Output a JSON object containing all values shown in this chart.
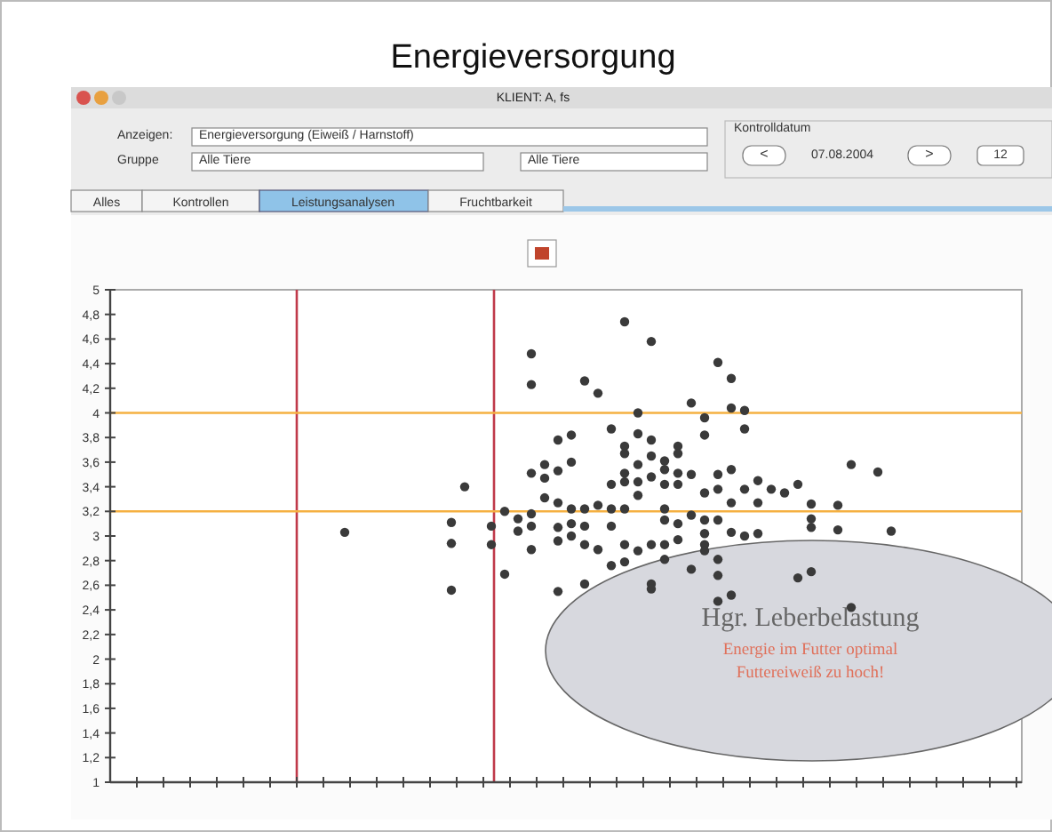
{
  "chart_data": {
    "type": "scatter",
    "title": "Energieversorgung",
    "annotations": [
      "KLIENT: A, fs",
      "Anzeigen:",
      "Energieversorgung (Eiweiß / Harnstoff)",
      "Gruppe",
      "Alle Tiere",
      "Alle Tiere",
      "Kontrolldatum",
      "<",
      "07.08.2004",
      ">",
      "12",
      "Alles",
      "Kontrollen",
      "Leistungsanalysen",
      "Fruchtbarkeit",
      "Hgr. Leberbelastung",
      "Energie im Futter optimal",
      "Futtereiweiß zu hoch!"
    ],
    "categories": [
      null,
      null,
      null,
      null,
      null,
      null,
      null,
      null,
      null,
      null,
      null,
      null,
      null,
      null,
      null,
      null,
      null,
      null,
      null,
      null,
      null,
      null,
      null,
      null,
      null,
      null,
      null,
      null,
      null,
      null,
      null,
      null,
      null,
      null,
      null,
      null,
      null,
      null,
      null,
      null,
      null,
      null,
      null,
      null,
      null,
      null,
      null,
      null,
      null,
      null,
      null,
      null,
      null,
      null,
      null,
      null,
      null,
      null,
      null,
      null,
      null,
      null,
      null,
      null,
      null,
      null,
      null,
      null
    ],
    "series": [
      {
        "color": "#3a3a3a",
        "values": [
          null,
          null,
          null,
          null,
          null,
          null,
          null,
          null,
          null,
          null,
          null,
          null,
          null,
          null,
          null,
          null,
          null,
          3.03,
          null,
          null,
          null,
          null,
          null,
          null,
          null,
          3.11,
          3.4,
          null,
          3.08,
          3.2,
          3.14,
          4.48,
          3.58,
          3.78,
          3.82,
          4.26,
          4.16,
          3.87,
          4.74,
          4.0,
          4.58,
          3.61,
          3.73,
          4.08,
          3.96,
          4.41,
          4.28,
          4.02,
          3.45,
          3.38,
          3.35,
          3.42,
          3.26,
          null,
          3.25,
          3.58,
          null,
          3.52,
          3.04,
          null,
          null,
          null,
          null,
          null,
          null,
          null,
          null,
          null
        ]
      },
      {
        "color": "#3a3a3a",
        "values": [
          null,
          null,
          null,
          null,
          null,
          null,
          null,
          null,
          null,
          null,
          null,
          null,
          null,
          null,
          null,
          null,
          null,
          null,
          null,
          null,
          null,
          null,
          null,
          null,
          null,
          2.94,
          null,
          null,
          2.93,
          2.69,
          3.04,
          4.23,
          3.47,
          3.53,
          3.6,
          3.22,
          3.25,
          3.42,
          3.73,
          3.83,
          3.78,
          3.54,
          3.67,
          3.5,
          3.82,
          3.5,
          4.04,
          3.87,
          3.27,
          null,
          null,
          2.66,
          3.14,
          null,
          3.05,
          2.42,
          null,
          null,
          null,
          null,
          null,
          null,
          null,
          null,
          null,
          null,
          null,
          null
        ]
      },
      {
        "color": "#3a3a3a",
        "values": [
          null,
          null,
          null,
          null,
          null,
          null,
          null,
          null,
          null,
          null,
          null,
          null,
          null,
          null,
          null,
          null,
          null,
          null,
          null,
          null,
          null,
          null,
          null,
          null,
          null,
          2.56,
          null,
          null,
          null,
          null,
          null,
          3.51,
          3.31,
          3.27,
          3.22,
          3.08,
          2.89,
          3.22,
          3.67,
          3.58,
          3.65,
          3.42,
          3.51,
          3.17,
          3.35,
          3.38,
          3.54,
          3.38,
          3.02,
          null,
          null,
          null,
          3.07,
          null,
          null,
          null,
          null,
          null,
          null,
          null,
          null,
          null,
          null,
          null,
          null,
          null,
          null,
          null
        ]
      },
      {
        "color": "#3a3a3a",
        "values": [
          null,
          null,
          null,
          null,
          null,
          null,
          null,
          null,
          null,
          null,
          null,
          null,
          null,
          null,
          null,
          null,
          null,
          null,
          null,
          null,
          null,
          null,
          null,
          null,
          null,
          null,
          null,
          null,
          null,
          null,
          null,
          2.89,
          null,
          3.07,
          3.1,
          2.93,
          null,
          3.08,
          3.51,
          3.44,
          3.48,
          3.22,
          3.42,
          2.73,
          3.13,
          3.13,
          3.27,
          3.0,
          null,
          null,
          null,
          null,
          2.71,
          null,
          null,
          null,
          null,
          null,
          null,
          null,
          null,
          null,
          null,
          null,
          null,
          null,
          null,
          null
        ]
      },
      {
        "color": "#3a3a3a",
        "values": [
          null,
          null,
          null,
          null,
          null,
          null,
          null,
          null,
          null,
          null,
          null,
          null,
          null,
          null,
          null,
          null,
          null,
          null,
          null,
          null,
          null,
          null,
          null,
          null,
          null,
          null,
          null,
          null,
          null,
          null,
          null,
          3.18,
          null,
          2.96,
          3.0,
          2.61,
          null,
          2.76,
          3.44,
          3.33,
          2.93,
          3.13,
          3.1,
          null,
          3.02,
          2.81,
          3.03,
          null,
          null,
          null,
          null,
          null,
          null,
          null,
          null,
          null,
          null,
          null,
          null,
          null,
          null,
          null,
          null,
          null,
          null,
          null,
          null,
          null
        ]
      },
      {
        "color": "#3a3a3a",
        "values": [
          null,
          null,
          null,
          null,
          null,
          null,
          null,
          null,
          null,
          null,
          null,
          null,
          null,
          null,
          null,
          null,
          null,
          null,
          null,
          null,
          null,
          null,
          null,
          null,
          null,
          null,
          null,
          null,
          null,
          null,
          null,
          3.08,
          null,
          2.55,
          null,
          null,
          null,
          null,
          3.22,
          2.88,
          2.61,
          2.93,
          2.97,
          null,
          2.93,
          2.68,
          2.52,
          null,
          null,
          null,
          null,
          null,
          null,
          null,
          null,
          null,
          null,
          null,
          null,
          null,
          null,
          null,
          null,
          null,
          null,
          null,
          null,
          null
        ]
      },
      {
        "color": "#3a3a3a",
        "values": [
          null,
          null,
          null,
          null,
          null,
          null,
          null,
          null,
          null,
          null,
          null,
          null,
          null,
          null,
          null,
          null,
          null,
          null,
          null,
          null,
          null,
          null,
          null,
          null,
          null,
          null,
          null,
          null,
          null,
          null,
          null,
          null,
          null,
          null,
          null,
          null,
          null,
          null,
          2.93,
          null,
          2.57,
          2.81,
          null,
          null,
          2.88,
          2.47,
          null,
          null,
          null,
          null,
          null,
          null,
          null,
          null,
          null,
          null,
          null,
          null,
          null,
          null,
          null,
          null,
          null,
          null,
          null,
          null,
          null,
          null
        ]
      },
      {
        "color": "#3a3a3a",
        "values": [
          null,
          null,
          null,
          null,
          null,
          null,
          null,
          null,
          null,
          null,
          null,
          null,
          null,
          null,
          null,
          null,
          null,
          null,
          null,
          null,
          null,
          null,
          null,
          null,
          null,
          null,
          null,
          null,
          null,
          null,
          null,
          null,
          null,
          null,
          null,
          null,
          null,
          null,
          2.79,
          null,
          null,
          null,
          null,
          null,
          null,
          null,
          null,
          null,
          null,
          null,
          null,
          null,
          null,
          null,
          null,
          null,
          null,
          null,
          null,
          null,
          null,
          null,
          null,
          null,
          null,
          null,
          null,
          null
        ]
      }
    ],
    "marker": "circle",
    "ylim": [
      1,
      5
    ],
    "yticks": [
      1,
      {
        "value": 1.2,
        "label": "1,2"
      },
      {
        "value": 1.4,
        "label": "1,4"
      },
      {
        "value": 1.6,
        "label": "1,6"
      },
      {
        "value": 1.8,
        "label": "1,8"
      },
      2,
      {
        "value": 2.2,
        "label": "2,2"
      },
      {
        "value": 2.4,
        "label": "2,4"
      },
      {
        "value": 2.6,
        "label": "2,6"
      },
      {
        "value": 2.8,
        "label": "2,8"
      },
      3,
      {
        "value": 3.2,
        "label": "3,2"
      },
      {
        "value": 3.4,
        "label": "3,4"
      },
      {
        "value": 3.6,
        "label": "3,6"
      },
      {
        "value": 3.8,
        "label": "3,8"
      },
      4,
      {
        "value": 4.2,
        "label": "4,2"
      },
      {
        "value": 4.4,
        "label": "4,4"
      },
      {
        "value": 4.6,
        "label": "4,6"
      },
      {
        "value": 4.8,
        "label": "4,8"
      },
      5
    ],
    "tick_labels": "y",
    "grid": false,
    "ref_lines": [
      {
        "axis": "y",
        "value": 4,
        "color": "#f5b041"
      },
      {
        "axis": "y",
        "value": 3.2,
        "color": "#f5b041"
      }
    ]
  }
}
